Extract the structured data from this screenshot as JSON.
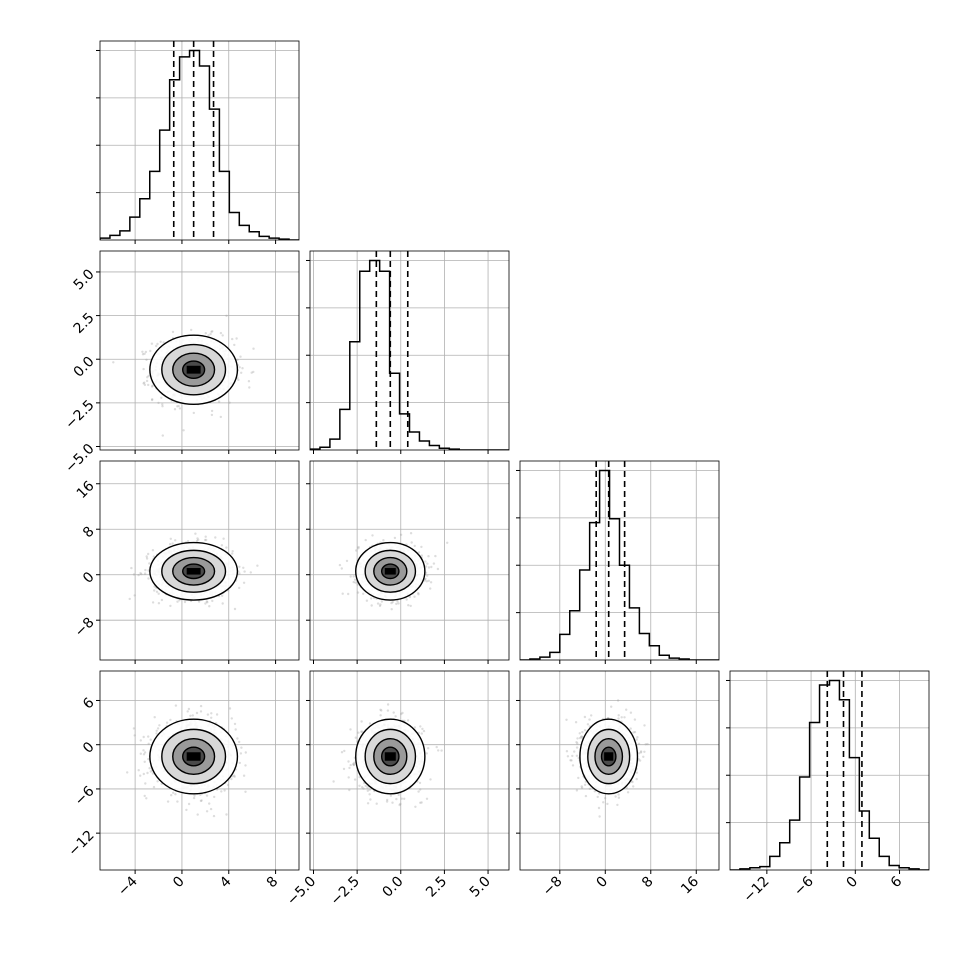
{
  "chart_data": {
    "type": "corner",
    "grid": true,
    "dimensions": [
      {
        "range": [
          -7,
          10
        ],
        "ticks": [
          -4,
          0,
          4,
          8
        ],
        "tick_labels": [
          "−4",
          "0",
          "4",
          "8"
        ],
        "quantiles": [
          -0.7,
          1.0,
          2.7
        ],
        "center": 1.0,
        "sigma": 1.7
      },
      {
        "range": [
          -5.2,
          6.2
        ],
        "ticks": [
          -5.0,
          -2.5,
          0.0,
          2.5,
          5.0
        ],
        "tick_labels": [
          "−5.0",
          "−2.5",
          "0.0",
          "2.5",
          "5.0"
        ],
        "quantiles": [
          -1.4,
          -0.6,
          0.4
        ],
        "center": -0.6,
        "sigma": 0.9
      },
      {
        "range": [
          -15,
          20
        ],
        "ticks": [
          -8,
          0,
          8,
          16
        ],
        "tick_labels": [
          "−8",
          "0",
          "8",
          "16"
        ],
        "quantiles": [
          -1.6,
          0.6,
          3.4
        ],
        "center": 0.6,
        "sigma": 2.3
      },
      {
        "range": [
          -17,
          10
        ],
        "ticks": [
          -12,
          -6,
          0,
          6
        ],
        "tick_labels": [
          "−12",
          "−6",
          "0",
          "6"
        ],
        "quantiles": [
          -3.8,
          -1.6,
          0.9
        ],
        "center": -1.6,
        "sigma": 2.3
      }
    ],
    "histograms": [
      {
        "dim": 0,
        "bin_edges": [
          -7,
          10
        ],
        "bins": 20,
        "counts": [
          2,
          5,
          10,
          25,
          45,
          75,
          120,
          175,
          200,
          207,
          190,
          143,
          75,
          30,
          16,
          9,
          4,
          2,
          1,
          0
        ]
      },
      {
        "dim": 1,
        "bin_edges": [
          -5.2,
          6.2
        ],
        "bins": 20,
        "counts": [
          1,
          3,
          12,
          45,
          120,
          198,
          210,
          198,
          85,
          40,
          20,
          10,
          5,
          2,
          1,
          0,
          0,
          0,
          0,
          0
        ]
      },
      {
        "dim": 2,
        "bin_edges": [
          -15,
          20
        ],
        "bins": 20,
        "counts": [
          0,
          1,
          3,
          8,
          27,
          52,
          95,
          145,
          200,
          149,
          100,
          55,
          28,
          15,
          5,
          2,
          1,
          0,
          0,
          0
        ]
      },
      {
        "dim": 3,
        "bin_edges": [
          -17,
          10
        ],
        "bins": 20,
        "counts": [
          0,
          1,
          2,
          3,
          12,
          24,
          44,
          82,
          130,
          163,
          167,
          150,
          99,
          52,
          28,
          12,
          4,
          2,
          1,
          0
        ]
      }
    ],
    "contour_levels": [
      "0.5σ",
      "1σ",
      "1.5σ",
      "2σ"
    ],
    "colors": {
      "line": "#000000",
      "grid": "#b0b0b0",
      "scatter": "#9e9e9e"
    }
  }
}
